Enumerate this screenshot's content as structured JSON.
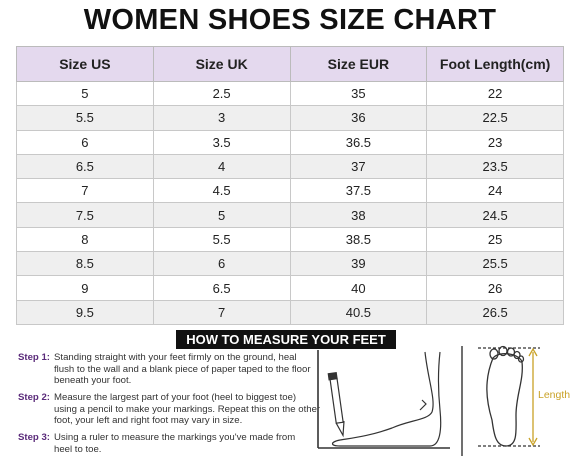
{
  "title": "WOMEN SHOES SIZE CHART",
  "table": {
    "columns": [
      "Size US",
      "Size UK",
      "Size EUR",
      "Foot Length(cm)"
    ],
    "rows": [
      [
        "5",
        "2.5",
        "35",
        "22"
      ],
      [
        "5.5",
        "3",
        "36",
        "22.5"
      ],
      [
        "6",
        "3.5",
        "36.5",
        "23"
      ],
      [
        "6.5",
        "4",
        "37",
        "23.5"
      ],
      [
        "7",
        "4.5",
        "37.5",
        "24"
      ],
      [
        "7.5",
        "5",
        "38",
        "24.5"
      ],
      [
        "8",
        "5.5",
        "38.5",
        "25"
      ],
      [
        "8.5",
        "6",
        "39",
        "25.5"
      ],
      [
        "9",
        "6.5",
        "40",
        "26"
      ],
      [
        "9.5",
        "7",
        "40.5",
        "26.5"
      ]
    ]
  },
  "measure": {
    "title": "HOW TO MEASURE YOUR FEET",
    "steps": [
      {
        "label": "Step 1:",
        "lines": [
          "Standing straight with your feet firmly on the ground, heal",
          "flush to the wall and a blank piece of paper taped to the floor",
          "beneath your foot."
        ]
      },
      {
        "label": "Step 2:",
        "lines": [
          "Measure the largest part of your foot (heel to biggest toe)",
          "using a pencil to make your markings. Repeat this on the other",
          "foot, your left and right foot may vary in size."
        ]
      },
      {
        "label": "Step 3:",
        "lines": [
          "Using a ruler to measure the markings you've made from",
          "heel to toe."
        ]
      }
    ],
    "length_label": "Length"
  }
}
